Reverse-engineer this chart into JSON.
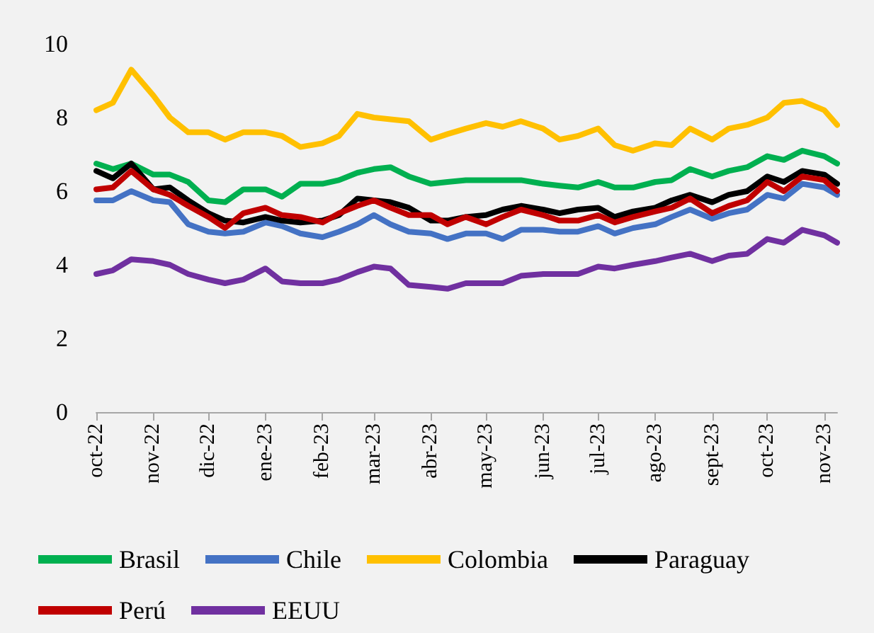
{
  "chart_data": {
    "type": "line",
    "x": [
      "2022-10-01",
      "2022-10-10",
      "2022-10-20",
      "2022-11-01",
      "2022-11-10",
      "2022-11-20",
      "2022-12-01",
      "2022-12-10",
      "2022-12-20",
      "2023-01-01",
      "2023-01-10",
      "2023-01-20",
      "2023-02-01",
      "2023-02-10",
      "2023-02-20",
      "2023-03-01",
      "2023-03-10",
      "2023-03-20",
      "2023-04-01",
      "2023-04-10",
      "2023-04-20",
      "2023-05-01",
      "2023-05-10",
      "2023-05-20",
      "2023-06-01",
      "2023-06-10",
      "2023-06-20",
      "2023-07-01",
      "2023-07-10",
      "2023-07-20",
      "2023-08-01",
      "2023-08-10",
      "2023-08-20",
      "2023-09-01",
      "2023-09-10",
      "2023-09-20",
      "2023-10-01",
      "2023-10-10",
      "2023-10-20",
      "2023-11-01",
      "2023-11-08"
    ],
    "series": [
      {
        "name": "Brasil",
        "color": "#00b050",
        "values": [
          6.75,
          6.6,
          6.75,
          6.45,
          6.45,
          6.25,
          5.75,
          5.7,
          6.05,
          6.05,
          5.85,
          6.2,
          6.2,
          6.3,
          6.5,
          6.6,
          6.65,
          6.4,
          6.2,
          6.25,
          6.3,
          6.3,
          6.3,
          6.3,
          6.2,
          6.15,
          6.1,
          6.25,
          6.1,
          6.1,
          6.25,
          6.3,
          6.6,
          6.4,
          6.55,
          6.65,
          6.95,
          6.85,
          7.1,
          6.95,
          6.75
        ]
      },
      {
        "name": "Chile",
        "color": "#4472c4",
        "values": [
          5.75,
          5.75,
          6.0,
          5.75,
          5.7,
          5.1,
          4.9,
          4.85,
          4.9,
          5.15,
          5.05,
          4.85,
          4.75,
          4.9,
          5.1,
          5.35,
          5.1,
          4.9,
          4.85,
          4.7,
          4.85,
          4.85,
          4.7,
          4.95,
          4.95,
          4.9,
          4.9,
          5.05,
          4.85,
          5.0,
          5.1,
          5.3,
          5.5,
          5.25,
          5.4,
          5.5,
          5.9,
          5.8,
          6.2,
          6.1,
          5.9
        ]
      },
      {
        "name": "Colombia",
        "color": "#ffc000",
        "values": [
          8.2,
          8.4,
          9.3,
          8.6,
          8.0,
          7.6,
          7.6,
          7.4,
          7.6,
          7.6,
          7.5,
          7.2,
          7.3,
          7.5,
          8.1,
          8.0,
          7.95,
          7.9,
          7.4,
          7.55,
          7.7,
          7.85,
          7.75,
          7.9,
          7.7,
          7.4,
          7.5,
          7.7,
          7.25,
          7.1,
          7.3,
          7.25,
          7.7,
          7.4,
          7.7,
          7.8,
          8.0,
          8.4,
          8.45,
          8.2,
          7.8
        ]
      },
      {
        "name": "Paraguay",
        "color": "#000000",
        "values": [
          6.55,
          6.35,
          6.75,
          6.05,
          6.1,
          5.75,
          5.4,
          5.2,
          5.15,
          5.3,
          5.2,
          5.15,
          5.2,
          5.35,
          5.8,
          5.75,
          5.7,
          5.55,
          5.2,
          5.2,
          5.3,
          5.35,
          5.5,
          5.6,
          5.5,
          5.4,
          5.5,
          5.55,
          5.3,
          5.45,
          5.55,
          5.75,
          5.9,
          5.7,
          5.9,
          6.0,
          6.4,
          6.25,
          6.55,
          6.45,
          6.2
        ]
      },
      {
        "name": "Perú",
        "color": "#c00000",
        "values": [
          6.05,
          6.1,
          6.55,
          6.05,
          5.9,
          5.6,
          5.3,
          5.0,
          5.4,
          5.55,
          5.35,
          5.3,
          5.15,
          5.4,
          5.6,
          5.75,
          5.55,
          5.35,
          5.35,
          5.1,
          5.3,
          5.1,
          5.3,
          5.5,
          5.35,
          5.2,
          5.2,
          5.35,
          5.15,
          5.3,
          5.45,
          5.55,
          5.8,
          5.4,
          5.6,
          5.75,
          6.25,
          6.0,
          6.4,
          6.3,
          6.0
        ]
      },
      {
        "name": "EEUU",
        "color": "#7030a0",
        "values": [
          3.75,
          3.85,
          4.15,
          4.1,
          4.0,
          3.75,
          3.6,
          3.5,
          3.6,
          3.9,
          3.55,
          3.5,
          3.5,
          3.6,
          3.8,
          3.95,
          3.9,
          3.45,
          3.4,
          3.35,
          3.5,
          3.5,
          3.5,
          3.7,
          3.75,
          3.75,
          3.75,
          3.95,
          3.9,
          4.0,
          4.1,
          4.2,
          4.3,
          4.1,
          4.25,
          4.3,
          4.7,
          4.6,
          4.95,
          4.8,
          4.6
        ]
      }
    ],
    "xlim": [
      "2022-10-01",
      "2023-11-08"
    ],
    "xticks": [
      {
        "value": "2022-10-01",
        "label": "oct-22"
      },
      {
        "value": "2022-11-01",
        "label": "nov-22"
      },
      {
        "value": "2022-12-01",
        "label": "dic-22"
      },
      {
        "value": "2023-01-01",
        "label": "ene-23"
      },
      {
        "value": "2023-02-01",
        "label": "feb-23"
      },
      {
        "value": "2023-03-01",
        "label": "mar-23"
      },
      {
        "value": "2023-04-01",
        "label": "abr-23"
      },
      {
        "value": "2023-05-01",
        "label": "may-23"
      },
      {
        "value": "2023-06-01",
        "label": "jun-23"
      },
      {
        "value": "2023-07-01",
        "label": "jul-23"
      },
      {
        "value": "2023-08-01",
        "label": "ago-23"
      },
      {
        "value": "2023-09-01",
        "label": "sept-23"
      },
      {
        "value": "2023-10-01",
        "label": "oct-23"
      },
      {
        "value": "2023-11-01",
        "label": "nov-23"
      }
    ],
    "ylim": [
      0,
      10
    ],
    "yticks": [
      0,
      2,
      4,
      6,
      8,
      10
    ],
    "grid": false,
    "legend": "bottom",
    "marker": "none",
    "line_style": "solid"
  }
}
